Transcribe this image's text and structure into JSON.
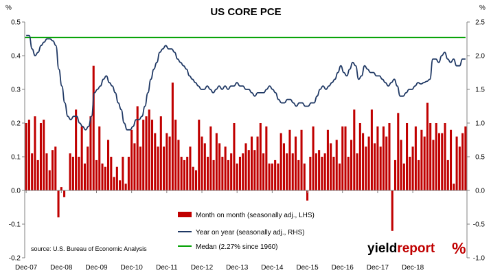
{
  "chart_data": {
    "type": "bar+line",
    "title": "US CORE PCE",
    "left_axis_unit": "%",
    "right_axis_unit": "%",
    "ylim_left": [
      -0.2,
      0.5
    ],
    "ylim_right": [
      -1.0,
      2.5
    ],
    "left_ticks": [
      "0.5",
      "0.4",
      "0.3",
      "0.2",
      "0.1",
      "0.0",
      "-0.1",
      "-0.2"
    ],
    "right_ticks": [
      "2.5",
      "2.0",
      "1.5",
      "1.0",
      "0.5",
      "0.0",
      "-0.5",
      "-1.0"
    ],
    "x_tick_labels": [
      "Dec-07",
      "Dec-08",
      "Dec-09",
      "Dec-10",
      "Dec-11",
      "Dec-12",
      "Dec-13",
      "Dec-14",
      "Dec-15",
      "Dec-16",
      "Dec-17",
      "Dec-18"
    ],
    "colors": {
      "bars": "#c00000",
      "yoy": "#1f3864",
      "median": "#00a000"
    },
    "series": [
      {
        "name": "Month on month (seasonally adj., LHS)",
        "type": "bar",
        "axis": "left",
        "values": [
          0.2,
          0.21,
          0.11,
          0.22,
          0.09,
          0.2,
          0.21,
          0.11,
          0.06,
          0.12,
          0.13,
          -0.08,
          0.01,
          -0.02,
          0.0,
          0.11,
          0.1,
          0.24,
          0.1,
          0.19,
          0.08,
          0.13,
          0.22,
          0.37,
          0.09,
          0.19,
          0.08,
          0.07,
          0.15,
          0.1,
          0.04,
          0.07,
          0.03,
          0.1,
          0.02,
          0.1,
          0.18,
          0.14,
          0.25,
          0.13,
          0.21,
          0.22,
          0.24,
          0.21,
          0.17,
          0.13,
          0.22,
          0.13,
          0.17,
          0.16,
          0.32,
          0.21,
          0.15,
          0.1,
          0.09,
          0.1,
          0.13,
          0.07,
          0.06,
          0.21,
          0.16,
          0.14,
          0.1,
          0.19,
          0.09,
          0.17,
          0.14,
          0.1,
          0.13,
          0.09,
          0.11,
          0.2,
          0.08,
          0.1,
          0.11,
          0.14,
          0.12,
          0.16,
          0.12,
          0.16,
          0.2,
          0.11,
          0.19,
          0.08,
          0.08,
          0.09,
          0.08,
          0.17,
          0.14,
          0.11,
          0.18,
          0.11,
          0.16,
          0.09,
          0.18,
          0.08,
          -0.03,
          0.1,
          0.19,
          0.11,
          0.12,
          0.1,
          0.11,
          0.18,
          0.14,
          0.1,
          0.15,
          0.08,
          0.19,
          0.19,
          0.1,
          0.15,
          0.24,
          0.11,
          0.2,
          0.17,
          0.13,
          0.16,
          0.24,
          0.14,
          0.19,
          0.13,
          0.19,
          0.16,
          0.2,
          -0.12,
          0.09,
          0.23,
          0.15,
          0.08,
          0.2,
          0.1,
          0.13,
          0.19,
          0.09,
          0.18,
          0.16,
          0.26,
          0.2,
          0.15,
          0.2,
          0.17,
          0.17,
          0.2,
          0.09,
          0.18,
          0.02,
          0.16,
          0.13,
          0.17,
          0.19
        ]
      },
      {
        "name": "Year on year (seasonally adj., RHS)",
        "type": "line",
        "axis": "right",
        "values": [
          2.3,
          2.3,
          2.1,
          2.0,
          2.05,
          2.15,
          2.2,
          2.25,
          2.25,
          2.22,
          2.15,
          1.8,
          1.55,
          1.3,
          1.1,
          1.05,
          1.1,
          1.1,
          1.0,
          0.95,
          0.9,
          0.95,
          1.1,
          1.45,
          1.5,
          1.55,
          1.65,
          1.7,
          1.6,
          1.55,
          1.45,
          1.3,
          1.2,
          1.0,
          0.9,
          0.9,
          0.95,
          1.05,
          1.05,
          1.1,
          1.25,
          1.45,
          1.65,
          1.8,
          1.9,
          2.05,
          2.1,
          2.15,
          2.1,
          2.1,
          2.05,
          1.95,
          1.9,
          1.85,
          1.8,
          1.7,
          1.65,
          1.6,
          1.55,
          1.5,
          1.5,
          1.55,
          1.5,
          1.45,
          1.5,
          1.55,
          1.5,
          1.55,
          1.5,
          1.55,
          1.55,
          1.6,
          1.55,
          1.55,
          1.5,
          1.5,
          1.45,
          1.4,
          1.45,
          1.45,
          1.45,
          1.5,
          1.55,
          1.5,
          1.45,
          1.35,
          1.3,
          1.3,
          1.35,
          1.35,
          1.3,
          1.25,
          1.3,
          1.3,
          1.25,
          1.25,
          1.3,
          1.3,
          1.4,
          1.5,
          1.55,
          1.5,
          1.55,
          1.6,
          1.65,
          1.75,
          1.85,
          1.75,
          1.7,
          1.8,
          1.9,
          1.85,
          1.65,
          1.7,
          1.85,
          1.8,
          1.75,
          1.75,
          1.7,
          1.7,
          1.65,
          1.6,
          1.55,
          1.6,
          1.65,
          1.55,
          1.4,
          1.4,
          1.45,
          1.5,
          1.5,
          1.55,
          1.6,
          1.58,
          1.6,
          1.62,
          1.65,
          1.95,
          1.95,
          1.9,
          2.0,
          2.05,
          1.95,
          1.9,
          1.95,
          1.85,
          1.85,
          1.95,
          1.95
        ]
      },
      {
        "name": "Medan (2.27% since 1960)",
        "type": "line",
        "axis": "right",
        "values": [
          2.27
        ]
      }
    ],
    "annotations": {
      "source": "source: U.S. Bureau of Economic Analysis",
      "brand_part1": "yield",
      "brand_part2": "report",
      "brand_symbol": "%"
    }
  }
}
